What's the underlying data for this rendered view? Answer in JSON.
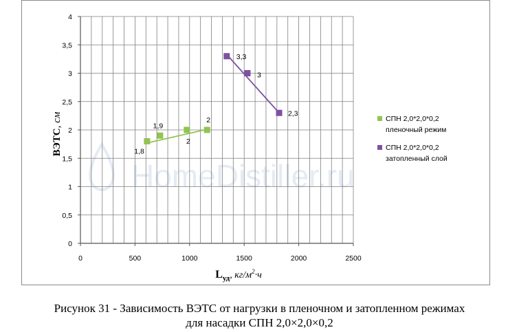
{
  "chart_data": {
    "type": "scatter",
    "xlabel_main": "L",
    "xlabel_sub": "уд",
    "xlabel_units": ", кг/м",
    "xlabel_units_sup": "2",
    "xlabel_units_tail": "·ч",
    "ylabel_main": "ВЭТС",
    "ylabel_units": ", см",
    "xlim": [
      0,
      2500
    ],
    "ylim": [
      0,
      4
    ],
    "x_ticks": [
      0,
      500,
      1000,
      1500,
      2000,
      2500
    ],
    "x_tick_labels": [
      "0",
      "500",
      "1000",
      "1500",
      "2000",
      "2500"
    ],
    "y_ticks": [
      0,
      0.5,
      1,
      1.5,
      2,
      2.5,
      3,
      3.5,
      4
    ],
    "y_tick_labels": [
      "0",
      "0,5",
      "1",
      "1,5",
      "2",
      "2,5",
      "3",
      "3,5",
      "4"
    ],
    "grid": true,
    "legend_position": "right",
    "series": [
      {
        "name_line1": "СПН 2,0*2,0*0,2",
        "name_line2": "пленочный режим",
        "color": "#92C353",
        "points": [
          {
            "x": 610,
            "y": 1.8,
            "label": "1,8"
          },
          {
            "x": 730,
            "y": 1.9,
            "label": "1,9"
          },
          {
            "x": 975,
            "y": 2.0,
            "label": "2"
          },
          {
            "x": 1160,
            "y": 2.0,
            "label": "2"
          }
        ],
        "trendline": {
          "x": [
            610,
            1160
          ],
          "y": [
            1.77,
            2.01
          ]
        }
      },
      {
        "name_line1": "СПН 2,0*2,0*0,2",
        "name_line2": "затопленный слой",
        "color": "#7D51A2",
        "points": [
          {
            "x": 1340,
            "y": 3.3,
            "label": "3,3"
          },
          {
            "x": 1530,
            "y": 3.0,
            "label": "3"
          },
          {
            "x": 1820,
            "y": 2.3,
            "label": "2,3"
          }
        ],
        "trendline": {
          "x": [
            1340,
            1820
          ],
          "y": [
            3.33,
            2.3
          ]
        }
      }
    ]
  },
  "watermark": "HomeDistiller.ru",
  "caption": {
    "line1": "Рисунок 31 - Зависимость ВЭТС от нагрузки в пленочном и затопленном режимах",
    "line2": "для насадки СПН 2,0×2,0×0,2"
  }
}
